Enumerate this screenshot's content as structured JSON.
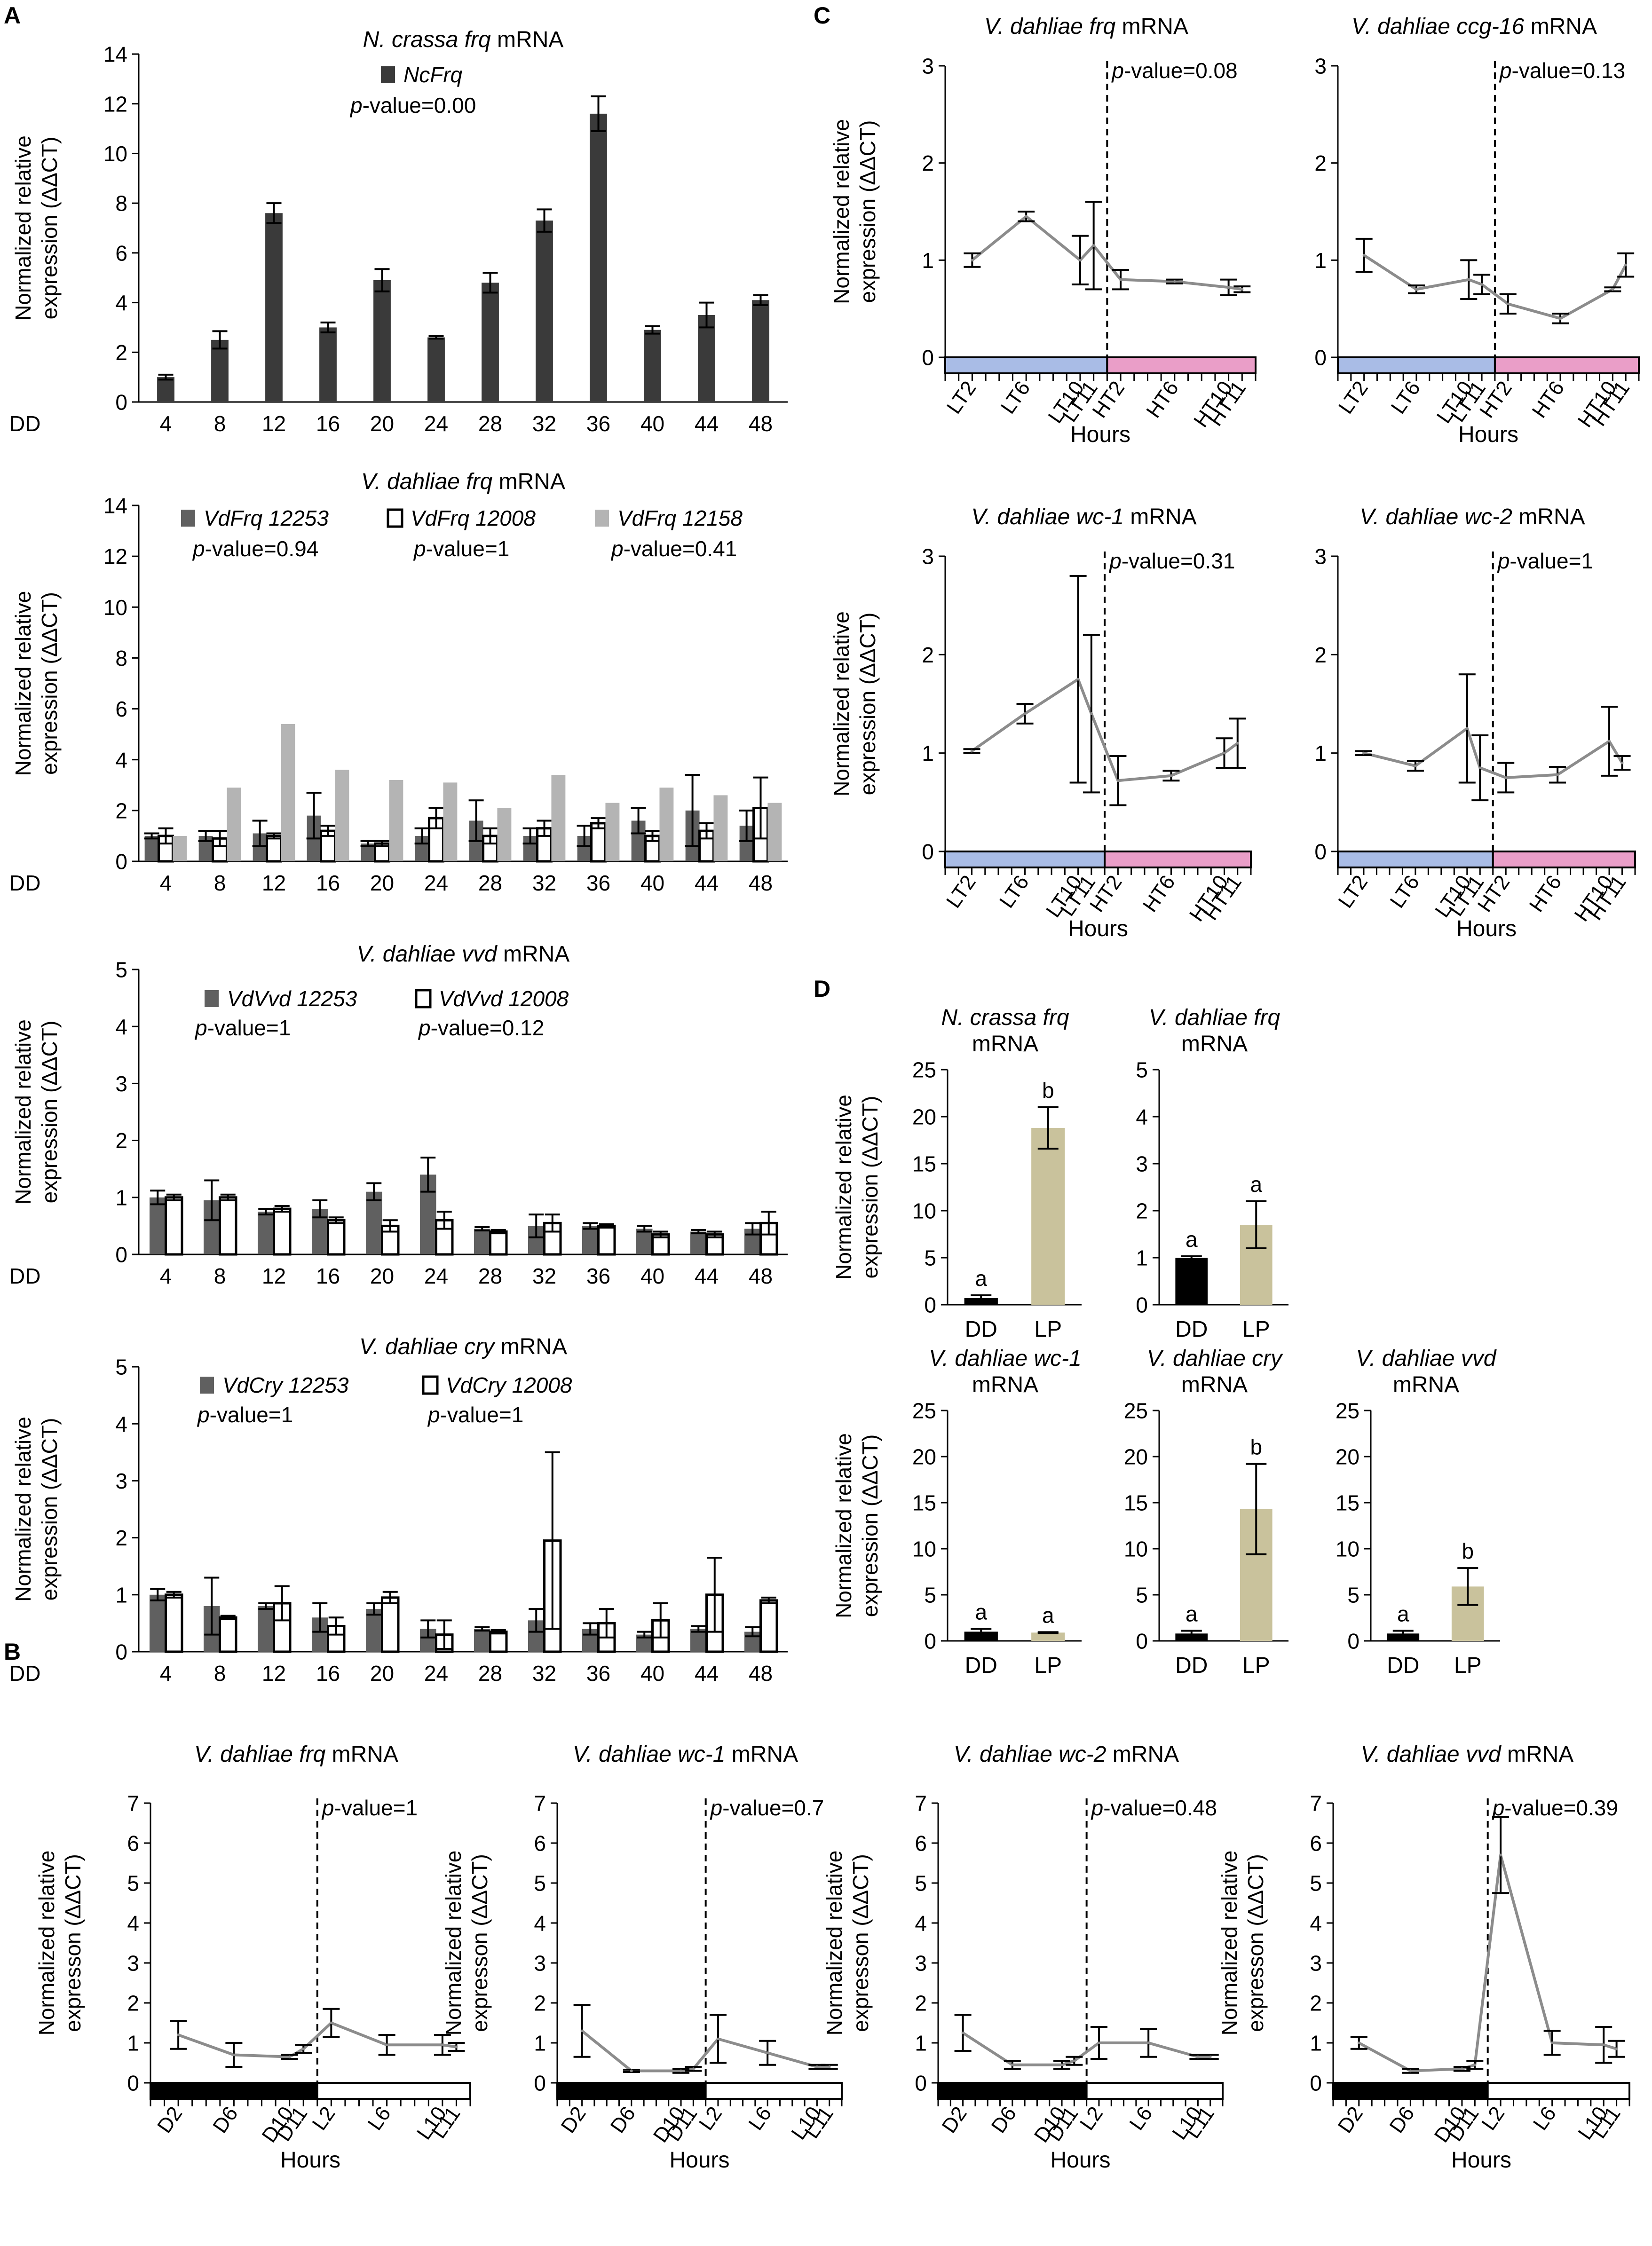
{
  "panel_labels": [
    "A",
    "B",
    "C",
    "D"
  ],
  "colors": {
    "dark": "#3a3a3a",
    "mid": "#606060",
    "light": "#b4b4b4",
    "white": "#ffffff",
    "line": "#8c8c8c",
    "blue": "#a9bce6",
    "pink": "#ea9ec8",
    "tan": "#c9c29c",
    "black": "#000000"
  },
  "chart_data": [
    {
      "id": "A1",
      "type": "bar",
      "title": "N. crassa frq mRNA",
      "ylabel": [
        "Normalized relative",
        "expression (ΔΔCT)"
      ],
      "xprefix": "DD",
      "ylim": [
        0,
        14
      ],
      "yticks": [
        0,
        2,
        4,
        6,
        8,
        10,
        12,
        14
      ],
      "categories": [
        "4",
        "8",
        "12",
        "16",
        "20",
        "24",
        "28",
        "32",
        "36",
        "40",
        "44",
        "48"
      ],
      "series": [
        {
          "name": "NcFrq",
          "style": "dark",
          "values": [
            1.0,
            2.5,
            7.6,
            3.0,
            4.9,
            2.6,
            4.8,
            7.3,
            11.6,
            2.9,
            3.5,
            4.1
          ],
          "err": [
            0.1,
            0.35,
            0.4,
            0.2,
            0.45,
            0.05,
            0.4,
            0.45,
            0.7,
            0.15,
            0.5,
            0.2
          ]
        }
      ],
      "legend_names": [
        "NcFrq"
      ],
      "pvalues": [
        "0.00"
      ]
    },
    {
      "id": "A2",
      "type": "bar",
      "title": "V. dahliae frq mRNA",
      "ylabel": [
        "Normalized relative",
        "expression (ΔΔCT)"
      ],
      "xprefix": "DD",
      "ylim": [
        0,
        14
      ],
      "yticks": [
        0,
        2,
        4,
        6,
        8,
        10,
        12,
        14
      ],
      "categories": [
        "4",
        "8",
        "12",
        "16",
        "20",
        "24",
        "28",
        "32",
        "36",
        "40",
        "44",
        "48"
      ],
      "series": [
        {
          "name": "VdFrq 12253",
          "style": "mid",
          "values": [
            1.0,
            1.0,
            1.1,
            1.8,
            0.7,
            1.0,
            1.6,
            1.0,
            1.0,
            1.6,
            2.0,
            1.4
          ],
          "err": [
            0.1,
            0.2,
            0.5,
            0.9,
            0.1,
            0.3,
            0.8,
            0.3,
            0.4,
            0.5,
            1.4,
            0.6
          ]
        },
        {
          "name": "VdFrq 12008",
          "style": "white",
          "values": [
            1.0,
            0.9,
            1.0,
            1.2,
            0.7,
            1.7,
            1.0,
            1.3,
            1.5,
            1.0,
            1.2,
            2.1
          ],
          "err": [
            0.3,
            0.3,
            0.1,
            0.2,
            0.1,
            0.4,
            0.3,
            0.3,
            0.2,
            0.2,
            0.3,
            1.2
          ]
        },
        {
          "name": "VdFrq 12158",
          "style": "light",
          "values": [
            1.0,
            2.9,
            5.4,
            3.6,
            3.2,
            3.1,
            2.1,
            3.4,
            2.3,
            2.9,
            2.6,
            2.3
          ]
        }
      ],
      "legend_names": [
        "VdFrq 12253",
        "VdFrq 12008",
        "VdFrq 12158"
      ],
      "pvalues": [
        "0.94",
        "1",
        "0.41"
      ]
    },
    {
      "id": "A3",
      "type": "bar",
      "title": "V. dahliae vvd mRNA",
      "ylabel": [
        "Normalized relative",
        "expression (ΔΔCT)"
      ],
      "xprefix": "DD",
      "ylim": [
        0,
        5
      ],
      "yticks": [
        0,
        1,
        2,
        3,
        4,
        5
      ],
      "categories": [
        "4",
        "8",
        "12",
        "16",
        "20",
        "24",
        "28",
        "32",
        "36",
        "40",
        "44",
        "48"
      ],
      "series": [
        {
          "name": "VdVvd 12253",
          "style": "mid",
          "values": [
            1.0,
            0.95,
            0.75,
            0.8,
            1.1,
            1.4,
            0.45,
            0.5,
            0.5,
            0.45,
            0.4,
            0.45
          ],
          "err": [
            0.12,
            0.35,
            0.05,
            0.15,
            0.15,
            0.3,
            0.03,
            0.2,
            0.05,
            0.05,
            0.03,
            0.1
          ]
        },
        {
          "name": "VdVvd 12008",
          "style": "white",
          "values": [
            1.0,
            1.0,
            0.8,
            0.6,
            0.5,
            0.6,
            0.4,
            0.55,
            0.5,
            0.35,
            0.35,
            0.55
          ],
          "err": [
            0.05,
            0.05,
            0.05,
            0.05,
            0.1,
            0.15,
            0.03,
            0.15,
            0.03,
            0.05,
            0.05,
            0.2
          ]
        }
      ],
      "legend_names": [
        "VdVvd 12253",
        "VdVvd 12008"
      ],
      "pvalues": [
        "1",
        "0.12"
      ]
    },
    {
      "id": "A4",
      "type": "bar",
      "title": "V. dahliae cry mRNA",
      "ylabel": [
        "Normalized relative",
        "expression (ΔΔCT)"
      ],
      "xprefix": "DD",
      "ylim": [
        0,
        5
      ],
      "yticks": [
        0,
        1,
        2,
        3,
        4,
        5
      ],
      "categories": [
        "4",
        "8",
        "12",
        "16",
        "20",
        "24",
        "28",
        "32",
        "36",
        "40",
        "44",
        "48"
      ],
      "series": [
        {
          "name": "VdCry 12253",
          "style": "mid",
          "values": [
            1.0,
            0.8,
            0.8,
            0.6,
            0.75,
            0.4,
            0.4,
            0.55,
            0.4,
            0.3,
            0.4,
            0.35
          ],
          "err": [
            0.1,
            0.5,
            0.05,
            0.25,
            0.1,
            0.15,
            0.03,
            0.2,
            0.1,
            0.05,
            0.05,
            0.08
          ]
        },
        {
          "name": "VdCry 12008",
          "style": "white",
          "values": [
            1.0,
            0.6,
            0.85,
            0.45,
            0.95,
            0.3,
            0.35,
            1.95,
            0.5,
            0.55,
            1.0,
            0.9
          ],
          "err": [
            0.05,
            0.03,
            0.3,
            0.15,
            0.1,
            0.25,
            0.03,
            1.55,
            0.25,
            0.3,
            0.65,
            0.05
          ]
        }
      ],
      "legend_names": [
        "VdCry 12253",
        "VdCry 12008"
      ],
      "pvalues": [
        "1",
        "1"
      ]
    },
    {
      "id": "B1",
      "type": "line",
      "title": "V. dahliae frq mRNA",
      "ylabel": [
        "Normalized relative",
        "expresson (ΔΔCT)"
      ],
      "xlabel": "Hours",
      "ylim": [
        0,
        7
      ],
      "yticks": [
        0,
        1,
        2,
        3,
        4,
        5,
        6,
        7
      ],
      "bands": [
        "black",
        "white"
      ],
      "categories": [
        "D2",
        "D6",
        "D10",
        "D11",
        "L2",
        "L6",
        "L10",
        "L11"
      ],
      "x": [
        2,
        6,
        10,
        11,
        13,
        17,
        21,
        22
      ],
      "x_range": [
        0,
        23
      ],
      "divider": 12,
      "values": [
        1.2,
        0.7,
        0.65,
        0.85,
        1.5,
        0.95,
        0.95,
        0.9
      ],
      "err": [
        0.35,
        0.3,
        0.05,
        0.1,
        0.35,
        0.25,
        0.25,
        0.1
      ],
      "pvalue": "1"
    },
    {
      "id": "B2",
      "type": "line",
      "title": "V. dahliae wc-1 mRNA",
      "ylabel": [
        "Normalized relative",
        "expresson (ΔΔCT)"
      ],
      "xlabel": "Hours",
      "ylim": [
        0,
        7
      ],
      "yticks": [
        0,
        1,
        2,
        3,
        4,
        5,
        6,
        7
      ],
      "bands": [
        "black",
        "white"
      ],
      "categories": [
        "D2",
        "D6",
        "D10",
        "D11",
        "L2",
        "L6",
        "L10",
        "L11"
      ],
      "x": [
        2,
        6,
        10,
        11,
        13,
        17,
        21,
        22
      ],
      "x_range": [
        0,
        23
      ],
      "divider": 12,
      "values": [
        1.3,
        0.3,
        0.3,
        0.35,
        1.1,
        0.75,
        0.4,
        0.4
      ],
      "err": [
        0.65,
        0.03,
        0.05,
        0.05,
        0.6,
        0.3,
        0.05,
        0.05
      ],
      "pvalue": "0.7"
    },
    {
      "id": "B3",
      "type": "line",
      "title": "V. dahliae wc-2 mRNA",
      "ylabel": [
        "Normalized relative",
        "expresson (ΔΔCT)"
      ],
      "xlabel": "Hours",
      "ylim": [
        0,
        7
      ],
      "yticks": [
        0,
        1,
        2,
        3,
        4,
        5,
        6,
        7
      ],
      "bands": [
        "black",
        "white"
      ],
      "categories": [
        "D2",
        "D6",
        "D10",
        "D11",
        "L2",
        "L6",
        "L10",
        "L11"
      ],
      "x": [
        2,
        6,
        10,
        11,
        13,
        17,
        21,
        22
      ],
      "x_range": [
        0,
        23
      ],
      "divider": 12,
      "values": [
        1.25,
        0.45,
        0.45,
        0.55,
        1.0,
        1.0,
        0.65,
        0.65
      ],
      "err": [
        0.45,
        0.1,
        0.1,
        0.1,
        0.4,
        0.35,
        0.05,
        0.05
      ],
      "pvalue": "0.48"
    },
    {
      "id": "B4",
      "type": "line",
      "title": "V. dahliae vvd mRNA",
      "ylabel": [
        "Normalized relative",
        "expresson (ΔΔCT)"
      ],
      "xlabel": "Hours",
      "ylim": [
        0,
        7
      ],
      "yticks": [
        0,
        1,
        2,
        3,
        4,
        5,
        6,
        7
      ],
      "bands": [
        "black",
        "white"
      ],
      "categories": [
        "D2",
        "D6",
        "D10",
        "D11",
        "L2",
        "L6",
        "L10",
        "L11"
      ],
      "x": [
        2,
        6,
        10,
        11,
        13,
        17,
        21,
        22
      ],
      "x_range": [
        0,
        23
      ],
      "divider": 12,
      "values": [
        1.0,
        0.3,
        0.35,
        0.45,
        5.7,
        1.0,
        0.95,
        0.85
      ],
      "err": [
        0.15,
        0.05,
        0.05,
        0.1,
        0.95,
        0.3,
        0.45,
        0.2
      ],
      "pvalue": "0.39"
    },
    {
      "id": "C1",
      "type": "line",
      "title": "V. dahliae frq mRNA",
      "ylabel": [
        "Normalized relative",
        "expression (ΔΔCT)"
      ],
      "xlabel": "Hours",
      "ylim": [
        0,
        3
      ],
      "yticks": [
        0,
        1,
        2,
        3
      ],
      "bands": [
        "blue",
        "pink"
      ],
      "categories": [
        "LT2",
        "LT6",
        "LT10",
        "LT11",
        "HT2",
        "HT6",
        "HT10",
        "HT11"
      ],
      "x": [
        2,
        6,
        10,
        11,
        13,
        17,
        21,
        22
      ],
      "x_range": [
        0,
        23
      ],
      "divider": 12,
      "values": [
        1.0,
        1.45,
        1.0,
        1.15,
        0.8,
        0.78,
        0.72,
        0.7
      ],
      "err": [
        0.07,
        0.05,
        0.25,
        0.45,
        0.1,
        0.02,
        0.08,
        0.03
      ],
      "pvalue": "0.08"
    },
    {
      "id": "C2",
      "type": "line",
      "title": "V. dahliae ccg-16 mRNA",
      "ylabel": [],
      "xlabel": "Hours",
      "ylim": [
        0,
        3
      ],
      "yticks": [
        0,
        1,
        2,
        3
      ],
      "bands": [
        "blue",
        "pink"
      ],
      "categories": [
        "LT2",
        "LT6",
        "LT10",
        "LT11",
        "HT2",
        "HT6",
        "HT10",
        "HT11"
      ],
      "x": [
        2,
        6,
        10,
        11,
        13,
        17,
        21,
        22
      ],
      "x_range": [
        0,
        23
      ],
      "divider": 12,
      "values": [
        1.05,
        0.7,
        0.8,
        0.75,
        0.55,
        0.4,
        0.7,
        0.95
      ],
      "err": [
        0.17,
        0.04,
        0.2,
        0.1,
        0.1,
        0.05,
        0.02,
        0.12
      ],
      "pvalue": "0.13"
    },
    {
      "id": "C3",
      "type": "line",
      "title": "V. dahliae wc-1 mRNA",
      "ylabel": [
        "Normalized relative",
        "expression (ΔΔCT)"
      ],
      "xlabel": "Hours",
      "ylim": [
        0,
        3
      ],
      "yticks": [
        0,
        1,
        2,
        3
      ],
      "bands": [
        "blue",
        "pink"
      ],
      "categories": [
        "LT2",
        "LT6",
        "LT10",
        "LT11",
        "HT2",
        "HT6",
        "HT10",
        "HT11"
      ],
      "x": [
        2,
        6,
        10,
        11,
        13,
        17,
        21,
        22
      ],
      "x_range": [
        0,
        23
      ],
      "divider": 12,
      "values": [
        1.02,
        1.4,
        1.75,
        1.4,
        0.72,
        0.77,
        1.0,
        1.1
      ],
      "err": [
        0.02,
        0.1,
        1.05,
        0.8,
        0.25,
        0.05,
        0.15,
        0.25
      ],
      "pvalue": "0.31"
    },
    {
      "id": "C4",
      "type": "line",
      "title": "V. dahliae wc-2 mRNA",
      "ylabel": [],
      "xlabel": "Hours",
      "ylim": [
        0,
        3
      ],
      "yticks": [
        0,
        1,
        2,
        3
      ],
      "bands": [
        "blue",
        "pink"
      ],
      "categories": [
        "LT2",
        "LT6",
        "LT10",
        "LT11",
        "HT2",
        "HT6",
        "HT10",
        "HT11"
      ],
      "x": [
        2,
        6,
        10,
        11,
        13,
        17,
        21,
        22
      ],
      "x_range": [
        0,
        23
      ],
      "divider": 12,
      "values": [
        1.0,
        0.87,
        1.25,
        0.85,
        0.75,
        0.78,
        1.12,
        0.9
      ],
      "err": [
        0.02,
        0.05,
        0.55,
        0.33,
        0.15,
        0.08,
        0.35,
        0.07
      ],
      "pvalue": "1"
    },
    {
      "id": "D1",
      "type": "bar",
      "title": [
        "N. crassa frq",
        "mRNA"
      ],
      "ylabel": [
        "Normalized relative",
        "expression (ΔΔCT)"
      ],
      "ylim": [
        0,
        25
      ],
      "yticks": [
        0,
        5,
        10,
        15,
        20,
        25
      ],
      "categories": [
        "DD",
        "LP"
      ],
      "values": [
        0.7,
        18.8
      ],
      "err": [
        0.3,
        2.2
      ],
      "colors": [
        "black",
        "tan"
      ],
      "letters": [
        "a",
        "b"
      ]
    },
    {
      "id": "D2",
      "type": "bar",
      "title": [
        "V. dahliae frq",
        "mRNA"
      ],
      "ylabel": [],
      "ylim": [
        0,
        5
      ],
      "yticks": [
        0,
        1,
        2,
        3,
        4,
        5
      ],
      "categories": [
        "DD",
        "LP"
      ],
      "values": [
        1.0,
        1.7
      ],
      "err": [
        0.03,
        0.5
      ],
      "colors": [
        "black",
        "tan"
      ],
      "letters": [
        "a",
        "a"
      ]
    },
    {
      "id": "D3",
      "type": "bar",
      "title": [
        "V. dahliae wc-1",
        "mRNA"
      ],
      "ylabel": [
        "Normalized relative",
        "expression (ΔΔCT)"
      ],
      "ylim": [
        0,
        25
      ],
      "yticks": [
        0,
        5,
        10,
        15,
        20,
        25
      ],
      "categories": [
        "DD",
        "LP"
      ],
      "values": [
        1.0,
        0.9
      ],
      "err": [
        0.3,
        0.05
      ],
      "colors": [
        "black",
        "tan"
      ],
      "letters": [
        "a",
        "a"
      ]
    },
    {
      "id": "D4",
      "type": "bar",
      "title": [
        "V. dahliae cry",
        "mRNA"
      ],
      "ylabel": [],
      "ylim": [
        0,
        25
      ],
      "yticks": [
        0,
        5,
        10,
        15,
        20,
        25
      ],
      "categories": [
        "DD",
        "LP"
      ],
      "values": [
        0.8,
        14.3
      ],
      "err": [
        0.3,
        4.9
      ],
      "colors": [
        "black",
        "tan"
      ],
      "letters": [
        "a",
        "b"
      ]
    },
    {
      "id": "D5",
      "type": "bar",
      "title": [
        "V. dahliae vvd",
        "mRNA"
      ],
      "ylabel": [],
      "ylim": [
        0,
        25
      ],
      "yticks": [
        0,
        5,
        10,
        15,
        20,
        25
      ],
      "categories": [
        "DD",
        "LP"
      ],
      "values": [
        0.8,
        5.9
      ],
      "err": [
        0.3,
        2.0
      ],
      "colors": [
        "black",
        "tan"
      ],
      "letters": [
        "a",
        "b"
      ]
    }
  ]
}
